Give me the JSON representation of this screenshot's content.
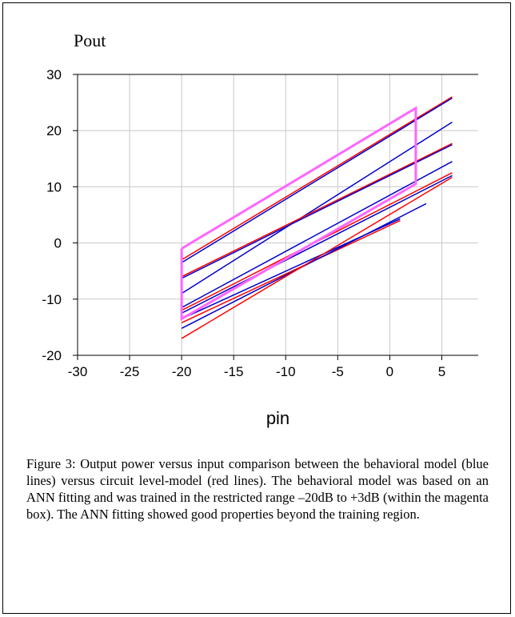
{
  "chart_data": {
    "type": "line",
    "ylabel": "Pout",
    "xlabel": "pin",
    "xlim": [
      -30,
      8.5
    ],
    "ylim": [
      -20,
      30
    ],
    "xticks": [
      -30,
      -25,
      -20,
      -15,
      -10,
      -5,
      0,
      5
    ],
    "yticks": [
      -20,
      -10,
      0,
      10,
      20,
      30
    ],
    "grid": true,
    "series": [
      {
        "color": "#ff0000",
        "x": [
          -20,
          6
        ],
        "y": [
          -3,
          26
        ]
      },
      {
        "color": "#0000cc",
        "x": [
          -20,
          6
        ],
        "y": [
          -3.5,
          25.8
        ]
      },
      {
        "color": "#0000cc",
        "x": [
          -20,
          6
        ],
        "y": [
          -9,
          21.5
        ]
      },
      {
        "color": "#ff0000",
        "x": [
          -20,
          6
        ],
        "y": [
          -6,
          17.7
        ]
      },
      {
        "color": "#0000cc",
        "x": [
          -20,
          6
        ],
        "y": [
          -6.3,
          17.5
        ]
      },
      {
        "color": "#0000cc",
        "x": [
          -20,
          6
        ],
        "y": [
          -11.5,
          14.5
        ]
      },
      {
        "color": "#ff0000",
        "x": [
          -20,
          6
        ],
        "y": [
          -12,
          12.5
        ]
      },
      {
        "color": "#0000cc",
        "x": [
          -20,
          6
        ],
        "y": [
          -12.5,
          12
        ]
      },
      {
        "color": "#0000cc",
        "x": [
          -20,
          1
        ],
        "y": [
          -13.5,
          4.3
        ]
      },
      {
        "color": "#ff0000",
        "x": [
          -20,
          1
        ],
        "y": [
          -14.2,
          4
        ]
      },
      {
        "color": "#0000cc",
        "x": [
          -20,
          3.5
        ],
        "y": [
          -15.2,
          7
        ]
      },
      {
        "color": "#ff0000",
        "x": [
          -20,
          6
        ],
        "y": [
          -17,
          11.7
        ]
      }
    ],
    "annotations": [
      {
        "type": "training-region-box",
        "color": "#ff66ff",
        "x": [
          -20,
          2.5,
          2.5,
          -20,
          -20
        ],
        "y": [
          -1,
          24,
          10.5,
          -13.5,
          -1
        ]
      }
    ]
  },
  "caption": "Figure 3: Output power versus input comparison between the behavioral model (blue lines) versus circuit level-model (red lines). The behavioral model was based on an ANN fitting and was trained in the restricted range –20dB to +3dB (within the magenta box). The ANN fitting showed good properties beyond the training region."
}
